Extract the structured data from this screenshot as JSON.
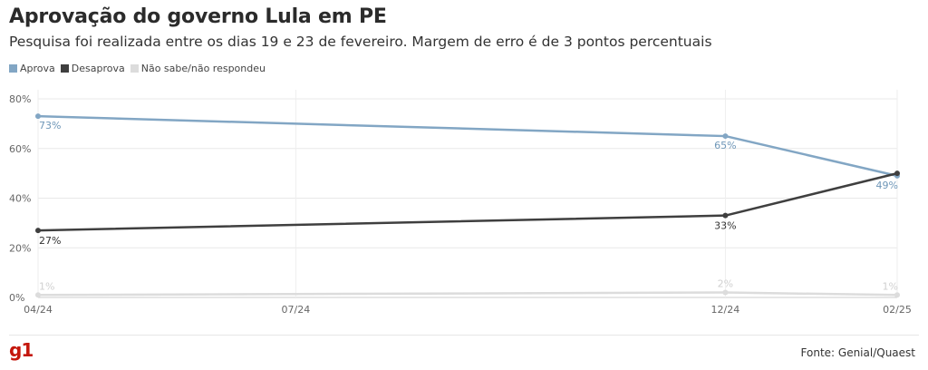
{
  "header": {
    "title": "Aprovação do governo Lula em PE",
    "subtitle": "Pesquisa foi realizada entre os dias 19 e 23 de fevereiro. Margem de erro é de 3 pontos percentuais"
  },
  "chart_data": {
    "type": "line",
    "title": "Aprovação do governo Lula em PE",
    "subtitle": "Pesquisa foi realizada entre os dias 19 e 23 de fevereiro. Margem de erro é de 3 pontos percentuais",
    "x": [
      "04/24",
      "12/24",
      "02/25"
    ],
    "x_positions_months": [
      0,
      8,
      10
    ],
    "xticks": [
      "04/24",
      "07/24",
      "12/24",
      "02/25"
    ],
    "xticks_months": [
      0,
      3,
      8,
      10
    ],
    "yticks": [
      "0%",
      "20%",
      "40%",
      "60%",
      "80%"
    ],
    "ylim": [
      0,
      80
    ],
    "grid": true,
    "legend_position": "top-left",
    "series": [
      {
        "name": "Aprova",
        "color": "#82a6c4",
        "values": [
          73,
          65,
          49
        ],
        "labels": [
          "73%",
          "65%",
          "49%"
        ]
      },
      {
        "name": "Desaprova",
        "color": "#3f3f3f",
        "values": [
          27,
          33,
          50
        ],
        "labels": [
          "27%",
          "33%",
          ""
        ]
      },
      {
        "name": "Não sabe/não respondeu",
        "color": "#dcdcdc",
        "values": [
          1,
          2,
          1
        ],
        "labels": [
          "1%",
          "2%",
          "1%"
        ]
      }
    ]
  },
  "footer": {
    "logo_text": "g1",
    "source": "Fonte: Genial/Quaest"
  },
  "colors": {
    "aprova": "#82a6c4",
    "desaprova": "#3f3f3f",
    "nao_sabe": "#dcdcdc",
    "brand": "#c4170c"
  }
}
